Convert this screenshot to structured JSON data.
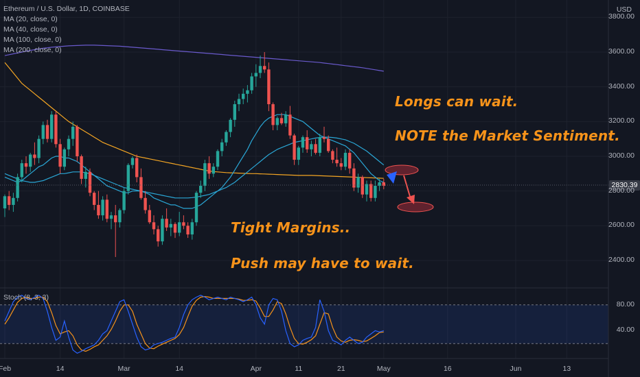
{
  "legend": {
    "symbol": "Ethereum / U.S. Dollar, 1D, COINBASE",
    "ma20": "MA (20, close, 0)",
    "ma40": "MA (40, close, 0)",
    "ma100": "MA (100, close, 0)",
    "ma200": "MA (200, close, 0)"
  },
  "stoch_label": "Stoch (8, 3, 3)",
  "currency": "USD",
  "last_price": "2830.39",
  "annotations": {
    "longs": "Longs can wait.",
    "note": "NOTE the Market Sentiment.",
    "tight": "Tight Margins..",
    "push": "Push may have to wait."
  },
  "colors": {
    "background": "#131722",
    "up": "#26a69a",
    "down": "#ef5350",
    "ma20": "#2aa7d6",
    "ma40": "#2aa7d6",
    "ma100": "#f5a623",
    "ma200": "#6a5acd",
    "stoch_k": "#2962ff",
    "stoch_d": "#f7931a",
    "annotation": "#f7931a"
  },
  "chart_data": {
    "type": "candlestick",
    "title": "Ethereum / U.S. Dollar, 1D, COINBASE",
    "y_ticks": [
      2400,
      2600,
      2800,
      3000,
      3200,
      3400,
      3600,
      3800
    ],
    "y_tick_labels": [
      "2400.00",
      "2600.00",
      "2800.00",
      "3000.00",
      "3200.00",
      "3400.00",
      "3600.00",
      "3800.00"
    ],
    "ylim": [
      2250,
      3900
    ],
    "x_tick_labels": [
      {
        "label": "Feb",
        "index": 0
      },
      {
        "label": "14",
        "index": 13
      },
      {
        "label": "Mar",
        "index": 28
      },
      {
        "label": "14",
        "index": 41
      },
      {
        "label": "Apr",
        "index": 59
      },
      {
        "label": "11",
        "index": 69
      },
      {
        "label": "21",
        "index": 79
      },
      {
        "label": "May",
        "index": 89
      },
      {
        "label": "16",
        "index": 104
      },
      {
        "label": "Jun",
        "index": 120
      },
      {
        "label": "13",
        "index": 132
      }
    ],
    "candles": [
      [
        2700,
        2780,
        2650,
        2770
      ],
      [
        2770,
        2800,
        2690,
        2720
      ],
      [
        2720,
        2790,
        2680,
        2760
      ],
      [
        2760,
        2900,
        2740,
        2880
      ],
      [
        2880,
        2980,
        2850,
        2960
      ],
      [
        2960,
        3000,
        2900,
        2940
      ],
      [
        2940,
        3020,
        2910,
        3010
      ],
      [
        3010,
        3080,
        2950,
        2990
      ],
      [
        2990,
        3120,
        2960,
        3100
      ],
      [
        3100,
        3200,
        3070,
        3180
      ],
      [
        3180,
        3210,
        3080,
        3100
      ],
      [
        3100,
        3260,
        3080,
        3240
      ],
      [
        3240,
        3260,
        3050,
        3070
      ],
      [
        3070,
        3100,
        2900,
        2940
      ],
      [
        2940,
        3050,
        2920,
        3040
      ],
      [
        3040,
        3120,
        3000,
        3100
      ],
      [
        3100,
        3200,
        3060,
        3170
      ],
      [
        3170,
        3180,
        2970,
        3000
      ],
      [
        3000,
        3010,
        2840,
        2870
      ],
      [
        2870,
        2940,
        2820,
        2910
      ],
      [
        2910,
        2930,
        2770,
        2790
      ],
      [
        2790,
        2800,
        2690,
        2720
      ],
      [
        2720,
        2800,
        2640,
        2660
      ],
      [
        2660,
        2770,
        2630,
        2750
      ],
      [
        2750,
        2780,
        2620,
        2640
      ],
      [
        2640,
        2680,
        2580,
        2660
      ],
      [
        2660,
        2720,
        2420,
        2620
      ],
      [
        2620,
        2700,
        2590,
        2690
      ],
      [
        2690,
        2820,
        2670,
        2800
      ],
      [
        2800,
        2960,
        2780,
        2950
      ],
      [
        2950,
        3000,
        2930,
        2990
      ],
      [
        2990,
        3010,
        2850,
        2880
      ],
      [
        2880,
        2930,
        2750,
        2760
      ],
      [
        2760,
        2800,
        2670,
        2690
      ],
      [
        2690,
        2720,
        2610,
        2620
      ],
      [
        2620,
        2660,
        2550,
        2580
      ],
      [
        2580,
        2600,
        2480,
        2510
      ],
      [
        2510,
        2660,
        2490,
        2640
      ],
      [
        2640,
        2700,
        2570,
        2590
      ],
      [
        2590,
        2640,
        2540,
        2610
      ],
      [
        2610,
        2620,
        2530,
        2560
      ],
      [
        2560,
        2680,
        2540,
        2620
      ],
      [
        2620,
        2660,
        2580,
        2600
      ],
      [
        2600,
        2620,
        2530,
        2550
      ],
      [
        2550,
        2640,
        2520,
        2620
      ],
      [
        2620,
        2800,
        2600,
        2790
      ],
      [
        2790,
        2860,
        2760,
        2830
      ],
      [
        2830,
        2980,
        2800,
        2960
      ],
      [
        2960,
        3000,
        2870,
        2900
      ],
      [
        2900,
        2960,
        2880,
        2940
      ],
      [
        2940,
        3040,
        2920,
        3030
      ],
      [
        3030,
        3100,
        3000,
        3080
      ],
      [
        3080,
        3150,
        3060,
        3140
      ],
      [
        3140,
        3220,
        3110,
        3210
      ],
      [
        3210,
        3320,
        3170,
        3300
      ],
      [
        3300,
        3360,
        3260,
        3330
      ],
      [
        3330,
        3390,
        3300,
        3360
      ],
      [
        3360,
        3410,
        3310,
        3380
      ],
      [
        3380,
        3480,
        3360,
        3460
      ],
      [
        3460,
        3530,
        3400,
        3480
      ],
      [
        3480,
        3580,
        3450,
        3520
      ],
      [
        3520,
        3600,
        3480,
        3500
      ],
      [
        3500,
        3540,
        3260,
        3300
      ],
      [
        3300,
        3310,
        3150,
        3180
      ],
      [
        3180,
        3230,
        3150,
        3220
      ],
      [
        3220,
        3250,
        3180,
        3190
      ],
      [
        3190,
        3260,
        3170,
        3240
      ],
      [
        3240,
        3290,
        3100,
        3120
      ],
      [
        3120,
        3130,
        2950,
        2980
      ],
      [
        2980,
        3060,
        2950,
        3050
      ],
      [
        3050,
        3120,
        3020,
        3110
      ],
      [
        3110,
        3150,
        3020,
        3040
      ],
      [
        3040,
        3090,
        3000,
        3070
      ],
      [
        3070,
        3100,
        3010,
        3020
      ],
      [
        3020,
        3130,
        3000,
        3110
      ],
      [
        3110,
        3170,
        3080,
        3100
      ],
      [
        3100,
        3120,
        3020,
        3030
      ],
      [
        3030,
        3040,
        2960,
        2980
      ],
      [
        2980,
        3050,
        2940,
        2960
      ],
      [
        2960,
        2990,
        2920,
        2940
      ],
      [
        2940,
        3040,
        2920,
        3020
      ],
      [
        3020,
        3040,
        2900,
        2930
      ],
      [
        2930,
        2960,
        2800,
        2820
      ],
      [
        2820,
        2900,
        2790,
        2880
      ],
      [
        2880,
        2890,
        2760,
        2780
      ],
      [
        2780,
        2860,
        2740,
        2840
      ],
      [
        2840,
        2860,
        2740,
        2760
      ],
      [
        2760,
        2860,
        2740,
        2830
      ],
      [
        2830,
        2870,
        2800,
        2850
      ],
      [
        2850,
        2870,
        2810,
        2830
      ]
    ],
    "ma20": [
      2880,
      2870,
      2860,
      2850,
      2860,
      2880,
      2900,
      2920,
      2940,
      2950,
      2970,
      2990,
      3000,
      3000,
      2990,
      2990,
      2980,
      2970,
      2950,
      2930,
      2910,
      2890,
      2870,
      2850,
      2830,
      2820,
      2810,
      2800,
      2790,
      2790,
      2800,
      2800,
      2800,
      2790,
      2780,
      2760,
      2750,
      2740,
      2730,
      2720,
      2720,
      2710,
      2700,
      2700,
      2700,
      2710,
      2720,
      2740,
      2760,
      2780,
      2800,
      2820,
      2850,
      2880,
      2920,
      2960,
      3000,
      3040,
      3090,
      3130,
      3170,
      3200,
      3220,
      3230,
      3240,
      3240,
      3240,
      3230,
      3220,
      3210,
      3200,
      3180,
      3160,
      3140,
      3120,
      3110,
      3100,
      3090,
      3080,
      3070,
      3060,
      3040,
      3020,
      2990,
      2960,
      2930,
      2900,
      2880,
      2860,
      2850
    ],
    "ma40": [
      2900,
      2890,
      2880,
      2870,
      2860,
      2855,
      2850,
      2850,
      2855,
      2860,
      2870,
      2880,
      2890,
      2900,
      2900,
      2905,
      2910,
      2910,
      2910,
      2905,
      2900,
      2890,
      2880,
      2870,
      2860,
      2850,
      2840,
      2830,
      2820,
      2815,
      2810,
      2805,
      2800,
      2795,
      2790,
      2785,
      2780,
      2775,
      2770,
      2765,
      2760,
      2760,
      2760,
      2760,
      2762,
      2765,
      2770,
      2775,
      2780,
      2790,
      2800,
      2810,
      2820,
      2835,
      2850,
      2870,
      2890,
      2910,
      2930,
      2950,
      2970,
      2990,
      3010,
      3025,
      3040,
      3050,
      3060,
      3070,
      3080,
      3085,
      3090,
      3095,
      3100,
      3105,
      3108,
      3110,
      3110,
      3108,
      3105,
      3100,
      3095,
      3085,
      3075,
      3060,
      3045,
      3030,
      3010,
      2990,
      2970,
      2950
    ],
    "ma100": [
      3540,
      3510,
      3480,
      3450,
      3420,
      3400,
      3380,
      3360,
      3340,
      3320,
      3300,
      3280,
      3260,
      3240,
      3220,
      3200,
      3185,
      3170,
      3155,
      3140,
      3125,
      3110,
      3095,
      3080,
      3070,
      3060,
      3050,
      3040,
      3030,
      3020,
      3010,
      3000,
      2995,
      2990,
      2985,
      2980,
      2975,
      2970,
      2965,
      2960,
      2955,
      2950,
      2945,
      2940,
      2935,
      2930,
      2925,
      2920,
      2915,
      2912,
      2910,
      2908,
      2906,
      2905,
      2904,
      2903,
      2902,
      2901,
      2900,
      2900,
      2899,
      2898,
      2897,
      2896,
      2895,
      2894,
      2893,
      2892,
      2891,
      2890,
      2890,
      2890,
      2890,
      2889,
      2888,
      2887,
      2886,
      2885,
      2884,
      2883,
      2882,
      2881,
      2880,
      2879,
      2878,
      2877,
      2876,
      2875,
      2874,
      2873
    ],
    "ma200": [
      3580,
      3585,
      3590,
      3595,
      3600,
      3605,
      3610,
      3614,
      3618,
      3622,
      3625,
      3628,
      3630,
      3632,
      3634,
      3636,
      3637,
      3638,
      3639,
      3640,
      3640,
      3640,
      3639,
      3638,
      3637,
      3636,
      3635,
      3634,
      3632,
      3630,
      3628,
      3626,
      3624,
      3622,
      3620,
      3618,
      3616,
      3614,
      3612,
      3610,
      3608,
      3606,
      3604,
      3602,
      3600,
      3598,
      3596,
      3594,
      3592,
      3590,
      3588,
      3586,
      3584,
      3582,
      3580,
      3578,
      3576,
      3574,
      3572,
      3570,
      3568,
      3566,
      3564,
      3562,
      3560,
      3558,
      3556,
      3554,
      3552,
      3550,
      3548,
      3546,
      3544,
      3542,
      3540,
      3537,
      3534,
      3531,
      3528,
      3525,
      3522,
      3519,
      3516,
      3513,
      3510,
      3506,
      3502,
      3498,
      3494,
      3490
    ],
    "stoch": {
      "ylim": [
        0,
        100
      ],
      "y_ticks": [
        40,
        80
      ],
      "y_tick_labels": [
        "40.00",
        "80.00"
      ],
      "bands": [
        20,
        80
      ],
      "k": [
        55,
        70,
        85,
        92,
        95,
        90,
        88,
        92,
        95,
        90,
        70,
        45,
        25,
        30,
        55,
        30,
        10,
        5,
        8,
        12,
        15,
        18,
        25,
        35,
        40,
        55,
        70,
        85,
        88,
        70,
        50,
        30,
        15,
        10,
        12,
        18,
        20,
        22,
        25,
        28,
        30,
        45,
        65,
        80,
        88,
        92,
        95,
        92,
        88,
        90,
        92,
        90,
        88,
        92,
        90,
        88,
        85,
        88,
        92,
        80,
        60,
        50,
        80,
        90,
        88,
        70,
        40,
        20,
        15,
        18,
        25,
        28,
        30,
        45,
        88,
        70,
        40,
        25,
        22,
        18,
        25,
        30,
        25,
        20,
        22,
        30,
        35,
        40,
        38,
        40
      ],
      "d": [
        50,
        60,
        72,
        84,
        90,
        92,
        90,
        90,
        92,
        92,
        85,
        68,
        48,
        35,
        38,
        40,
        32,
        18,
        10,
        8,
        11,
        15,
        18,
        25,
        32,
        42,
        55,
        70,
        80,
        80,
        70,
        50,
        35,
        20,
        13,
        12,
        16,
        19,
        22,
        25,
        28,
        34,
        45,
        62,
        78,
        87,
        92,
        93,
        92,
        90,
        90,
        90,
        90,
        90,
        90,
        89,
        87,
        87,
        88,
        86,
        75,
        62,
        62,
        72,
        85,
        82,
        66,
        45,
        28,
        20,
        19,
        22,
        26,
        32,
        50,
        68,
        66,
        45,
        30,
        24,
        22,
        25,
        26,
        25,
        23,
        24,
        28,
        32,
        37,
        38
      ]
    }
  }
}
